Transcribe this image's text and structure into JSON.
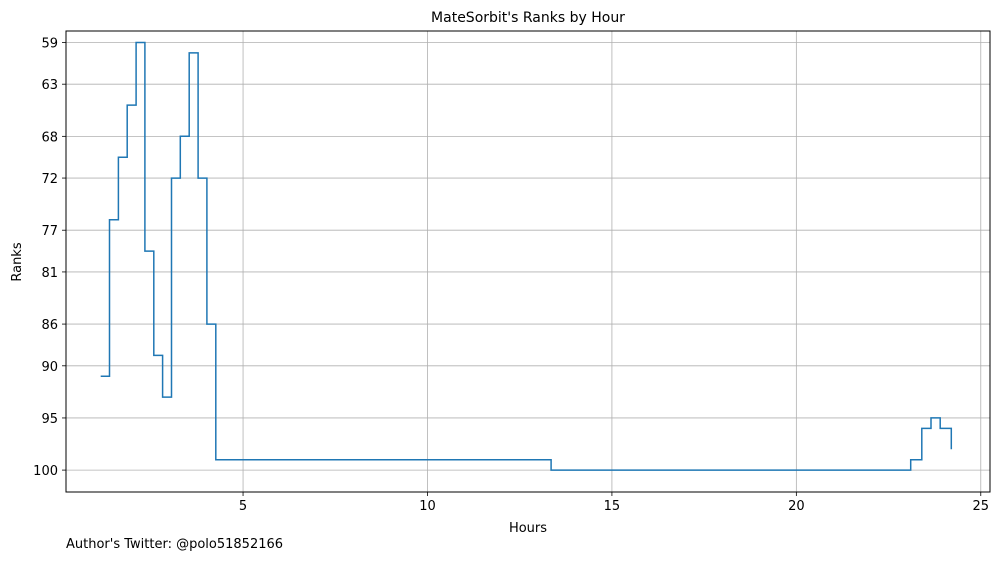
{
  "chart_data": {
    "type": "line",
    "drawstyle": "steps",
    "title": "MateSorbit's Ranks by Hour",
    "xlabel": "Hours",
    "ylabel": "Ranks",
    "xlim": [
      0.2,
      25.25
    ],
    "ylim": [
      102.1,
      57.9
    ],
    "y_inverted": true,
    "x_ticks": [
      5,
      10,
      15,
      20,
      25
    ],
    "y_ticks": [
      59,
      63,
      68,
      72,
      77,
      81,
      86,
      90,
      95,
      100
    ],
    "grid": true,
    "color": "#1f77b4",
    "series": [
      {
        "x": [
          1.14,
          1.38,
          1.62,
          1.86,
          2.1,
          2.34,
          2.58,
          2.82,
          3.06,
          3.3,
          3.54,
          3.78,
          4.02,
          4.26,
          4.5,
          13.1,
          13.35,
          22.5,
          23.1,
          23.4,
          23.65,
          23.9,
          24.2
        ],
        "y": [
          91,
          76,
          70,
          65,
          59,
          79,
          89,
          93,
          72,
          68,
          60,
          72,
          86,
          99,
          99,
          99,
          100,
          100,
          99,
          96,
          95,
          96,
          98
        ]
      }
    ]
  },
  "footer": {
    "credit": "Author's Twitter: @polo51852166"
  }
}
